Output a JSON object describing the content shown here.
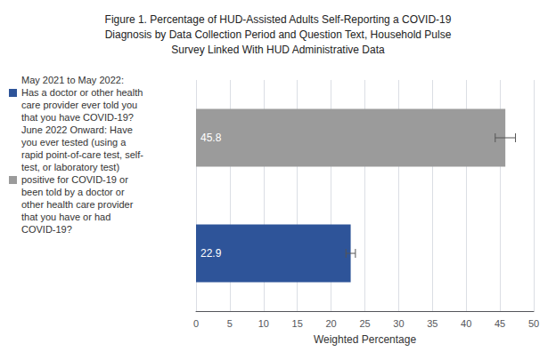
{
  "chart_data": {
    "type": "bar",
    "orientation": "horizontal",
    "title": "Figure 1. Percentage of HUD-Assisted Adults Self-Reporting a COVID-19\nDiagnosis by Data Collection Period and Question Text, Household Pulse\nSurvey Linked With HUD Administrative Data",
    "categories": [
      null,
      null
    ],
    "values": [
      45.8,
      22.9
    ],
    "errors": [
      1.5,
      0.7
    ],
    "colors": [
      "#9b9b9b",
      "#2e5499"
    ],
    "data_labels": true,
    "annotations": [
      "May 2021 to May 2022:",
      "Has a doctor or other health",
      "care provider ever told you",
      "that you have COVID-19?",
      "June 2022 Onward: Have",
      "you ever tested (using a",
      "rapid point-of-care test, self-",
      "test, or laboratory test)",
      "positive for COVID-19 or",
      "been told by a doctor or",
      "other health care provider",
      "that you have or had",
      "COVID-19?"
    ],
    "xlabel": "Weighted Percentage",
    "xlim": [
      0,
      50
    ],
    "xticks": [
      0,
      5,
      10,
      15,
      20,
      25,
      30,
      35,
      40,
      45,
      50
    ],
    "tick_labels": "x",
    "grid": true
  }
}
